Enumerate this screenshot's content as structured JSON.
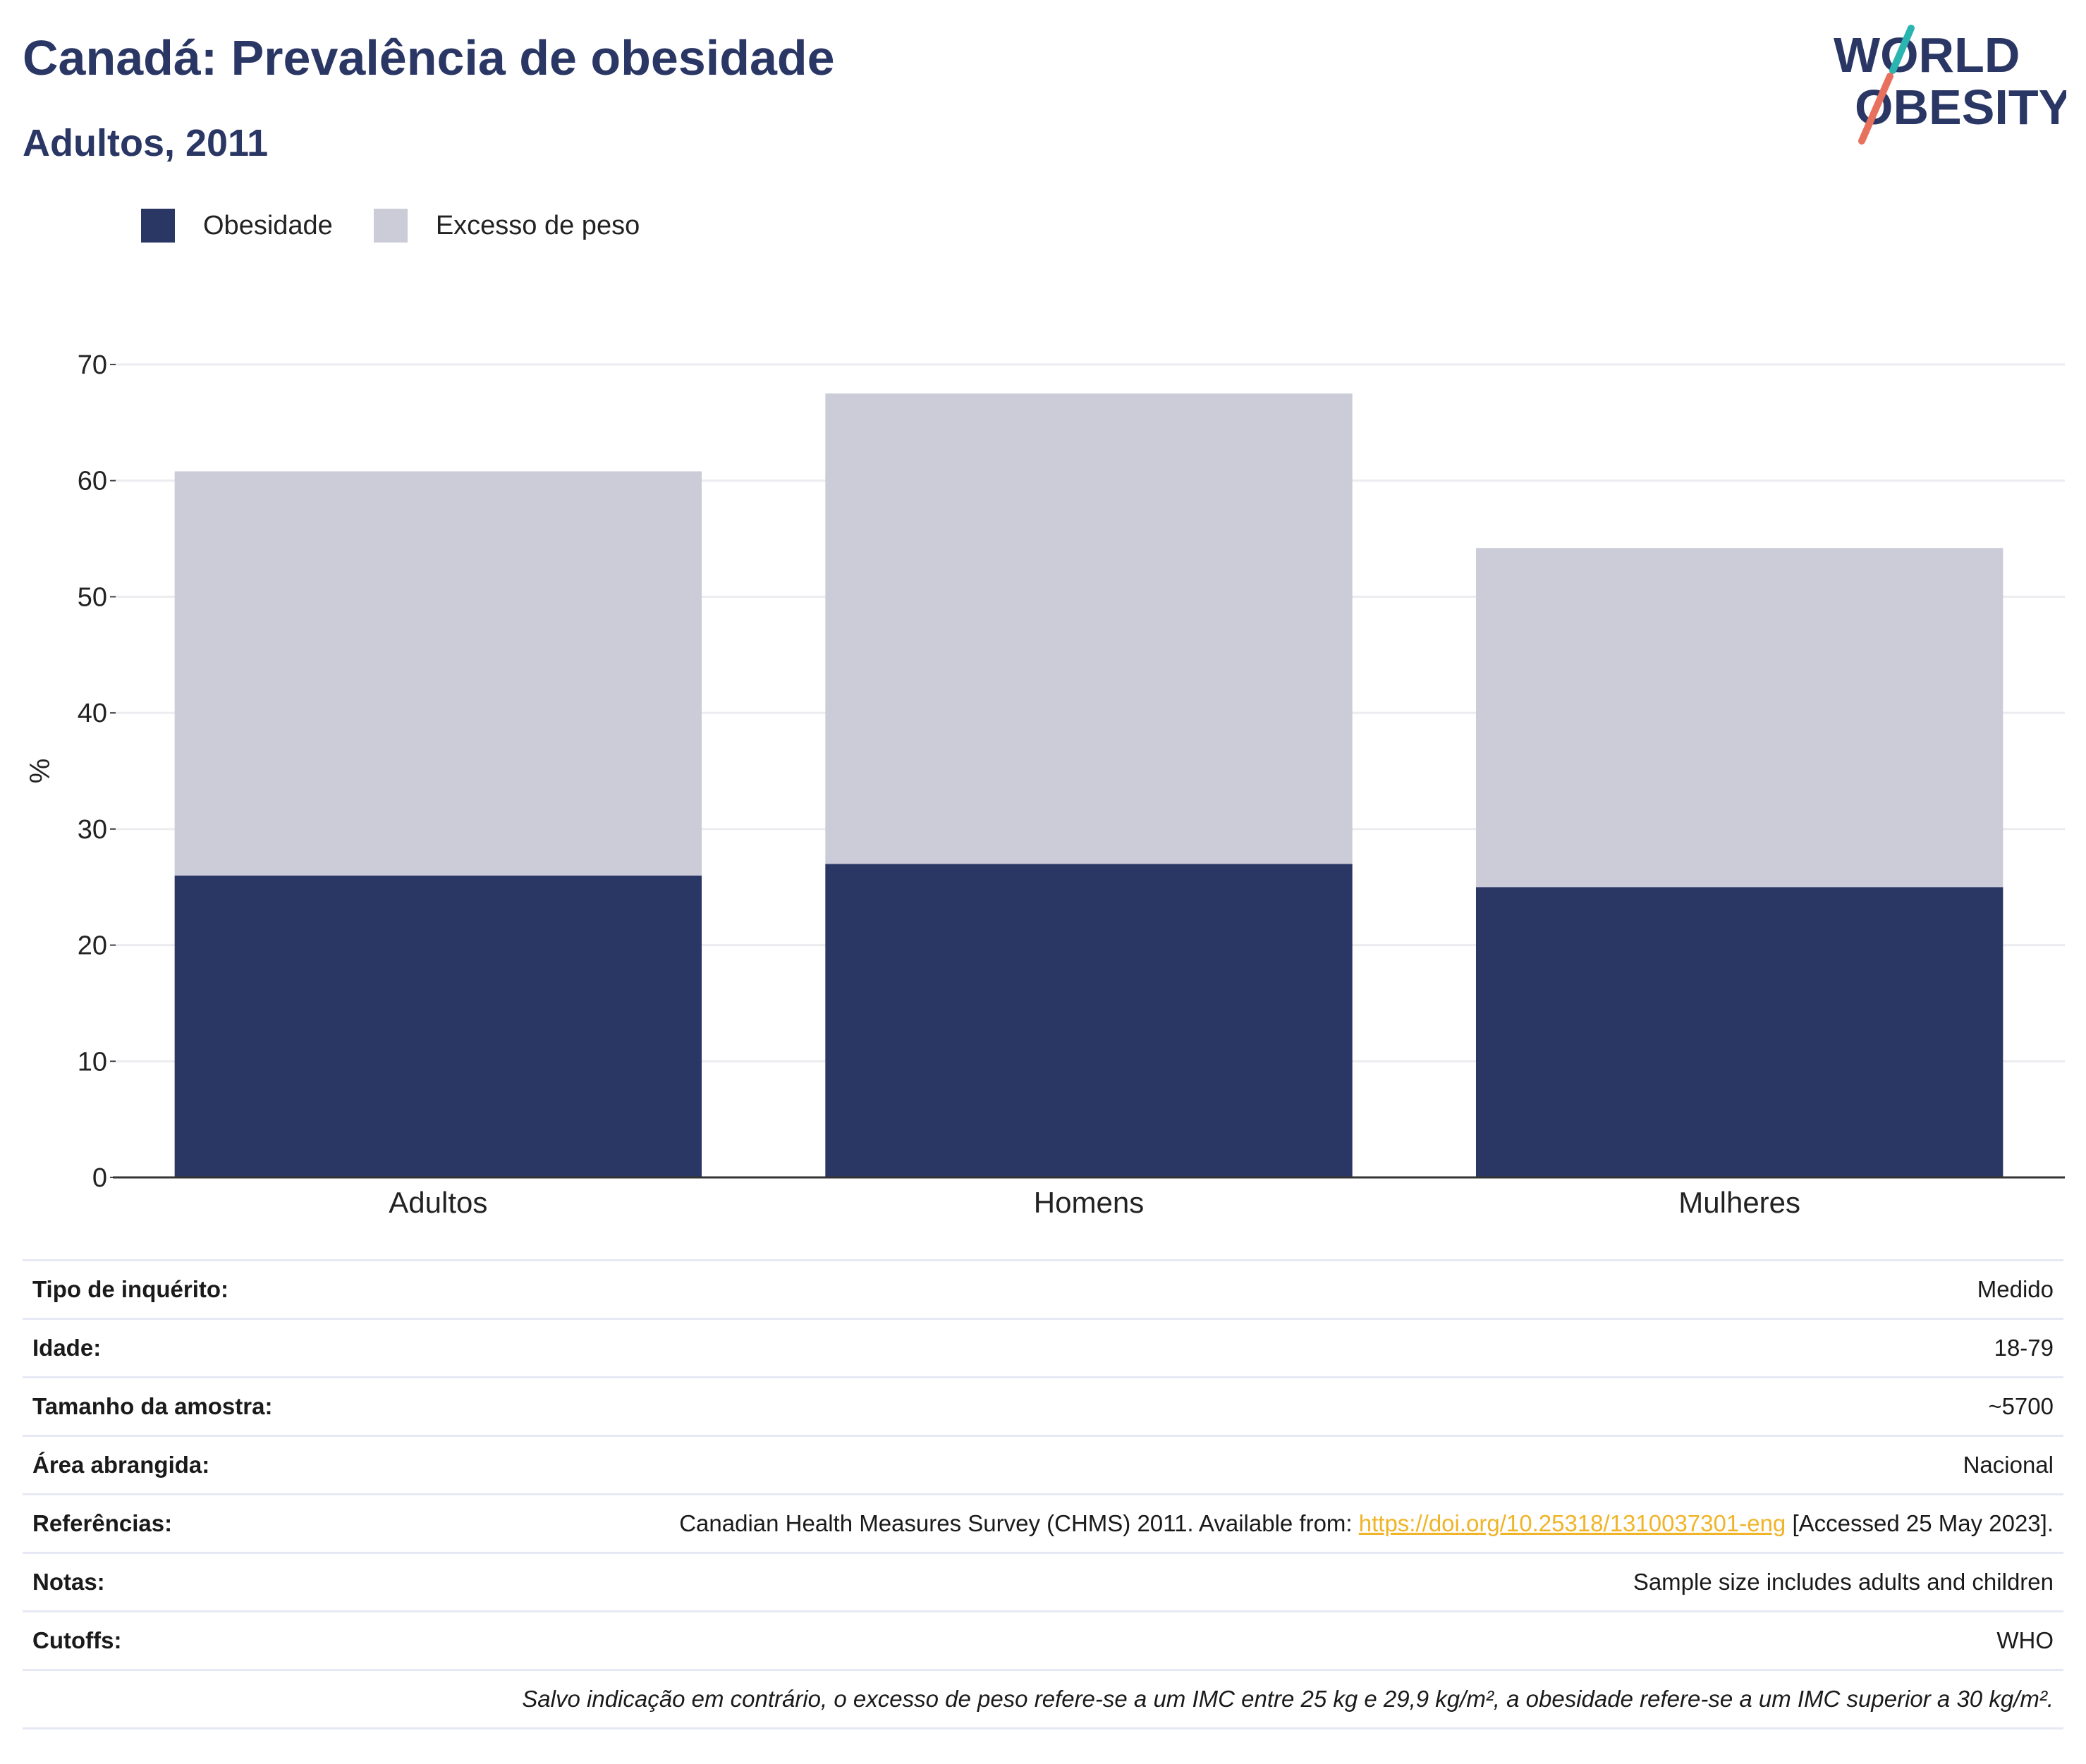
{
  "header": {
    "title": "Canadá: Prevalência de obesidade",
    "subtitle": "Adultos, 2011"
  },
  "logo": {
    "line1": "WORLD",
    "line2": "OBESITY"
  },
  "legend": [
    {
      "label": "Obesidade",
      "color": "#2a3664"
    },
    {
      "label": "Excesso de peso",
      "color": "#cbccd8"
    }
  ],
  "chart_data": {
    "type": "bar",
    "stacked": true,
    "categories": [
      "Adultos",
      "Homens",
      "Mulheres"
    ],
    "series": [
      {
        "name": "Obesidade",
        "values": [
          26,
          27,
          25
        ],
        "color": "#2a3664"
      },
      {
        "name": "Excesso de peso",
        "values": [
          34.8,
          40.5,
          29.2
        ],
        "color": "#cbccd8"
      }
    ],
    "ylabel": "%",
    "ylim": [
      0,
      70
    ],
    "yticks": [
      0,
      10,
      20,
      30,
      40,
      50,
      60,
      70
    ],
    "grid": true,
    "legend_position": "top-left"
  },
  "info": {
    "survey_type": {
      "label": "Tipo de inquérito:",
      "value": "Medido"
    },
    "age": {
      "label": "Idade:",
      "value": "18-79"
    },
    "sample_size": {
      "label": "Tamanho da amostra:",
      "value": "~5700"
    },
    "area": {
      "label": "Área abrangida:",
      "value": "Nacional"
    },
    "references": {
      "label": "Referências:",
      "prefix": "Canadian Health Measures Survey (CHMS) 2011. Available from: ",
      "link": "https://doi.org/10.25318/1310037301-eng",
      "suffix": " [Accessed 25 May 2023]."
    },
    "notes": {
      "label": "Notas:",
      "value": "Sample size includes adults and children"
    },
    "cutoffs": {
      "label": "Cutoffs:",
      "value": "WHO"
    },
    "footnote": "Salvo indicação em contrário, o excesso de peso refere-se a um IMC entre 25 kg e 29,9 kg/m², a obesidade refere-se a um IMC superior a 30 kg/m²."
  }
}
